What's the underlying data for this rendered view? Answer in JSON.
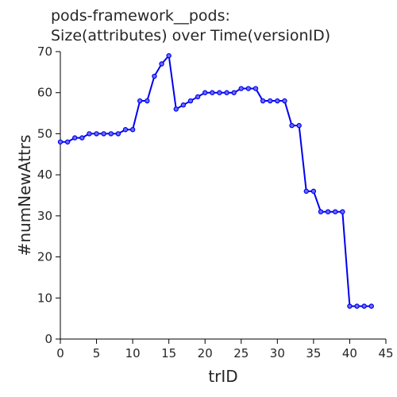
{
  "chart_data": {
    "type": "line",
    "title": [
      "pods-framework__pods:",
      "Size(attributes) over Time(versionID)"
    ],
    "xlabel": "trID",
    "ylabel": "#numNewAttrs",
    "xlim": [
      0,
      45
    ],
    "ylim": [
      0,
      70
    ],
    "xticks": [
      0,
      5,
      10,
      15,
      20,
      25,
      30,
      35,
      40,
      45
    ],
    "yticks": [
      0,
      10,
      20,
      30,
      40,
      50,
      60,
      70
    ],
    "grid": false,
    "series": [
      {
        "color": "#0000ee",
        "marker": "circle",
        "x": [
          0,
          1,
          2,
          3,
          4,
          5,
          6,
          7,
          8,
          9,
          10,
          11,
          12,
          13,
          14,
          15,
          16,
          17,
          18,
          19,
          20,
          21,
          22,
          23,
          24,
          25,
          26,
          27,
          28,
          29,
          30,
          31,
          32,
          33,
          34,
          35,
          36,
          37,
          38,
          39,
          40,
          41,
          42,
          43
        ],
        "y": [
          48,
          48,
          49,
          49,
          50,
          50,
          50,
          50,
          50,
          51,
          51,
          58,
          58,
          64,
          67,
          69,
          56,
          57,
          58,
          59,
          60,
          60,
          60,
          60,
          60,
          61,
          61,
          61,
          58,
          58,
          58,
          58,
          52,
          52,
          36,
          36,
          31,
          31,
          31,
          31,
          8,
          8,
          8,
          8
        ]
      }
    ]
  }
}
